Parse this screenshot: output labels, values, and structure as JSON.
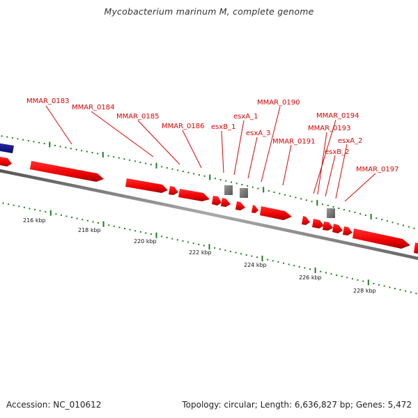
{
  "title": "Mycobacterium marinum M, complete genome",
  "footer": {
    "accession": "Accession: NC_010612",
    "summary": "Topology: circular; Length: 6,636,827 bp; Genes: 5,472"
  },
  "colors": {
    "gene_forward": "#ee0000",
    "gene_other": "#1a1a8c",
    "gene_rna": "#808080",
    "backbone": "#999999",
    "tick": "#1f7a1f",
    "label": "#dd0000",
    "leader": "#e00000"
  },
  "scale_labels": [
    "216 kbp",
    "218 kbp",
    "220 kbp",
    "222 kbp",
    "224 kbp",
    "226 kbp",
    "228 kbp"
  ],
  "genes": [
    {
      "name": "MMAR_0183"
    },
    {
      "name": "MMAR_0184"
    },
    {
      "name": "MMAR_0185"
    },
    {
      "name": "MMAR_0186"
    },
    {
      "name": "esxB_1"
    },
    {
      "name": "esxA_1"
    },
    {
      "name": "esxA_3"
    },
    {
      "name": "MMAR_0190"
    },
    {
      "name": "MMAR_0191"
    },
    {
      "name": "MMAR_0194"
    },
    {
      "name": "MMAR_0193"
    },
    {
      "name": "esxB_2"
    },
    {
      "name": "esxA_2"
    },
    {
      "name": "MMAR_0197"
    }
  ]
}
